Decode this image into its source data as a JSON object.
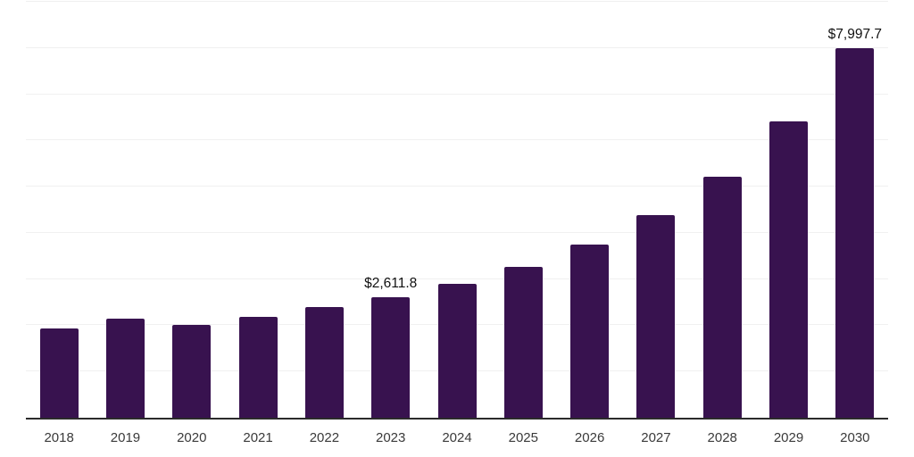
{
  "chart_data": {
    "type": "bar",
    "title": "",
    "xlabel": "",
    "ylabel": "",
    "categories": [
      "2018",
      "2019",
      "2020",
      "2021",
      "2022",
      "2023",
      "2024",
      "2025",
      "2026",
      "2027",
      "2028",
      "2029",
      "2030"
    ],
    "values": [
      1925,
      2145,
      2010,
      2190,
      2400,
      2611.8,
      2895,
      3265,
      3745,
      4375,
      5215,
      6410,
      7997.7
    ],
    "point_labels": [
      "",
      "",
      "",
      "",
      "",
      "$2,611.8",
      "",
      "",
      "",
      "",
      "",
      "",
      "$7,997.7"
    ],
    "ylim": [
      0,
      9000
    ],
    "gridline_step": 1000,
    "y_tick_labels_visible": false,
    "grid": "horizontal",
    "legend": "none"
  },
  "colors": {
    "background": "#ffffff",
    "bar": "#38124F",
    "gridline": "#f0f0f0",
    "axis_line": "#2b2b2b",
    "tick_label": "#3a3a3a",
    "data_label": "#111111"
  }
}
